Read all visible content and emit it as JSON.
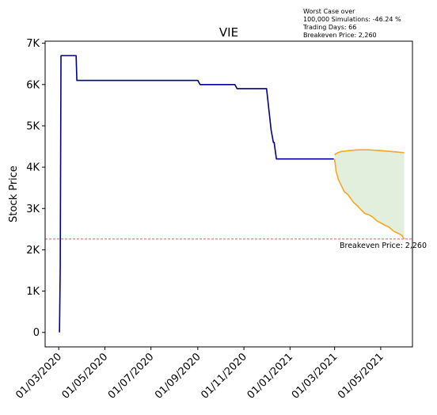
{
  "chart_data": {
    "type": "line",
    "title": "VIE",
    "ylabel": "Stock Price",
    "xlabel": "",
    "ylim": [
      -350,
      7050
    ],
    "xlim": [
      "2020-02-12",
      "2021-06-12"
    ],
    "y_ticks": [
      {
        "value": 0,
        "label": "0"
      },
      {
        "value": 1000,
        "label": "1K"
      },
      {
        "value": 2000,
        "label": "2K"
      },
      {
        "value": 3000,
        "label": "3K"
      },
      {
        "value": 4000,
        "label": "4K"
      },
      {
        "value": 5000,
        "label": "5K"
      },
      {
        "value": 6000,
        "label": "6K"
      },
      {
        "value": 7000,
        "label": "7K"
      }
    ],
    "x_ticks": [
      {
        "value": "2020-03-01",
        "label": "01/03/2020"
      },
      {
        "value": "2020-05-01",
        "label": "01/05/2020"
      },
      {
        "value": "2020-07-01",
        "label": "01/07/2020"
      },
      {
        "value": "2020-09-01",
        "label": "01/09/2020"
      },
      {
        "value": "2020-11-01",
        "label": "01/11/2020"
      },
      {
        "value": "2021-01-01",
        "label": "01/01/2021"
      },
      {
        "value": "2021-03-01",
        "label": "01/03/2021"
      },
      {
        "value": "2021-05-01",
        "label": "01/05/2021"
      }
    ],
    "annotation_lines": [
      "Worst Case over",
      "100,000 Simulations: -46.24 %",
      "Trading Days: 66",
      "Breakeven Price: 2,260"
    ],
    "breakeven": {
      "value": 2260,
      "label": "Breakeven Price: 2,260",
      "color": "#d62728"
    },
    "series": [
      {
        "color": "#00008b",
        "points": [
          [
            "2020-03-02",
            0
          ],
          [
            "2020-03-03",
            1600
          ],
          [
            "2020-03-04",
            6700
          ],
          [
            "2020-03-20",
            6700
          ],
          [
            "2020-03-24",
            6700
          ],
          [
            "2020-03-25",
            6100
          ],
          [
            "2020-09-01",
            6100
          ],
          [
            "2020-09-04",
            6000
          ],
          [
            "2020-10-20",
            6000
          ],
          [
            "2020-10-23",
            5900
          ],
          [
            "2020-12-01",
            5900
          ],
          [
            "2020-12-04",
            5400
          ],
          [
            "2020-12-07",
            4900
          ],
          [
            "2020-12-09",
            4700
          ],
          [
            "2020-12-10",
            4600
          ],
          [
            "2020-12-11",
            4600
          ],
          [
            "2020-12-14",
            4200
          ],
          [
            "2021-02-28",
            4200
          ]
        ]
      },
      {
        "color": "#f5a623",
        "points": [
          [
            "2021-03-01",
            4300
          ],
          [
            "2021-03-05",
            4350
          ],
          [
            "2021-03-10",
            4380
          ],
          [
            "2021-03-20",
            4400
          ],
          [
            "2021-04-01",
            4420
          ],
          [
            "2021-04-15",
            4420
          ],
          [
            "2021-05-01",
            4400
          ],
          [
            "2021-05-15",
            4380
          ],
          [
            "2021-06-01",
            4350
          ]
        ]
      },
      {
        "color": "#f5a623",
        "points": [
          [
            "2021-03-01",
            4200
          ],
          [
            "2021-03-03",
            3900
          ],
          [
            "2021-03-06",
            3700
          ],
          [
            "2021-03-10",
            3550
          ],
          [
            "2021-03-14",
            3400
          ],
          [
            "2021-03-18",
            3350
          ],
          [
            "2021-03-22",
            3250
          ],
          [
            "2021-03-26",
            3150
          ],
          [
            "2021-04-01",
            3050
          ],
          [
            "2021-04-06",
            2950
          ],
          [
            "2021-04-10",
            2880
          ],
          [
            "2021-04-15",
            2850
          ],
          [
            "2021-04-20",
            2800
          ],
          [
            "2021-04-26",
            2700
          ],
          [
            "2021-05-01",
            2650
          ],
          [
            "2021-05-06",
            2600
          ],
          [
            "2021-05-12",
            2550
          ],
          [
            "2021-05-18",
            2450
          ],
          [
            "2021-05-24",
            2400
          ],
          [
            "2021-05-29",
            2350
          ],
          [
            "2021-06-01",
            2260
          ]
        ]
      }
    ],
    "band_color": "#e2efdd"
  }
}
